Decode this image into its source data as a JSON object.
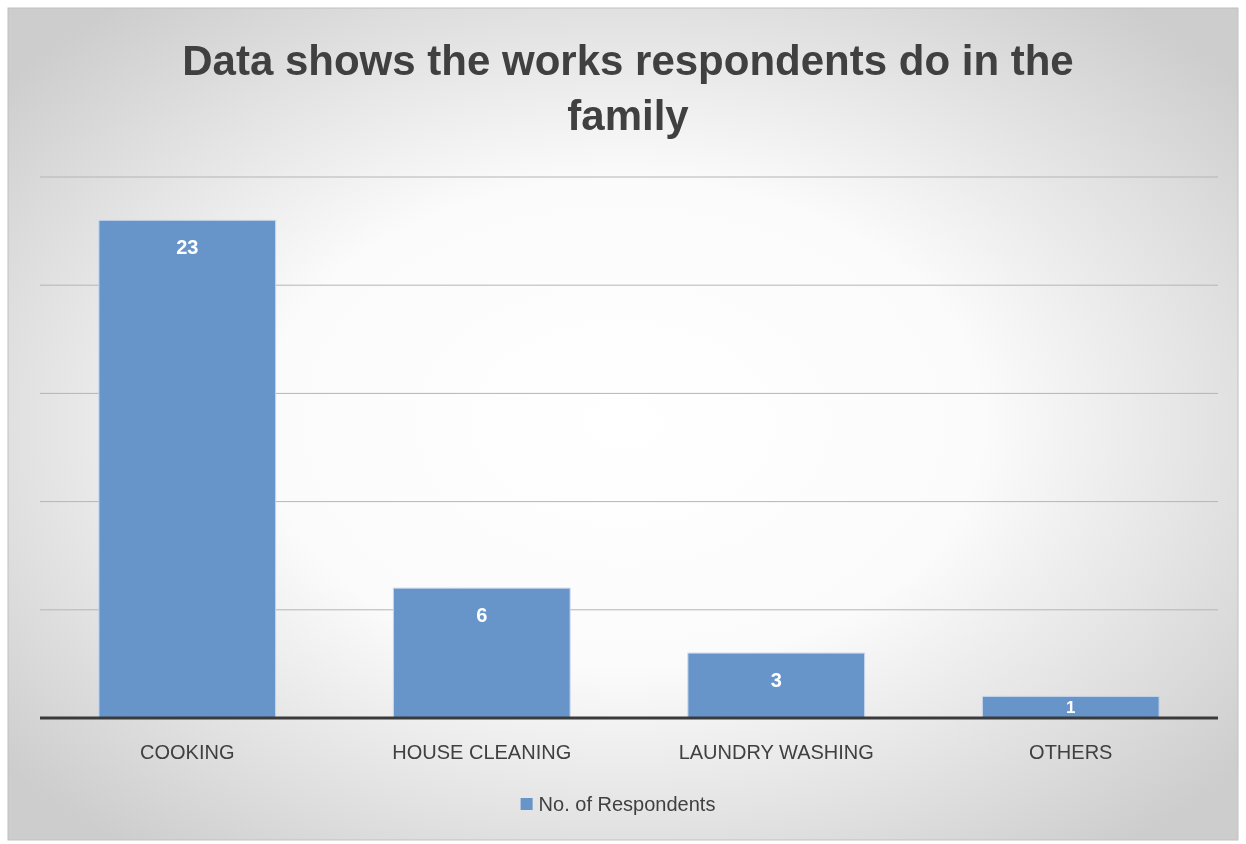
{
  "chart_data": {
    "type": "bar",
    "title": "Data shows the works respondents do in the family",
    "categories": [
      "COOKING",
      "HOUSE CLEANING",
      "LAUNDRY WASHING",
      "OTHERS"
    ],
    "series": [
      {
        "name": "No. of Respondents",
        "color": "#6794c9",
        "values": [
          23,
          6,
          3,
          1
        ]
      }
    ],
    "ylim": [
      0,
      25
    ],
    "yticks": [
      {
        "value": 0,
        "label": null
      },
      {
        "value": 5,
        "label": null
      },
      {
        "value": 10,
        "label": null
      },
      {
        "value": 15,
        "label": null
      },
      {
        "value": 20,
        "label": null
      },
      {
        "value": 25,
        "label": null
      }
    ],
    "grid": "y",
    "tick_labels": "x",
    "legend": "bottom",
    "data_labels": true
  }
}
